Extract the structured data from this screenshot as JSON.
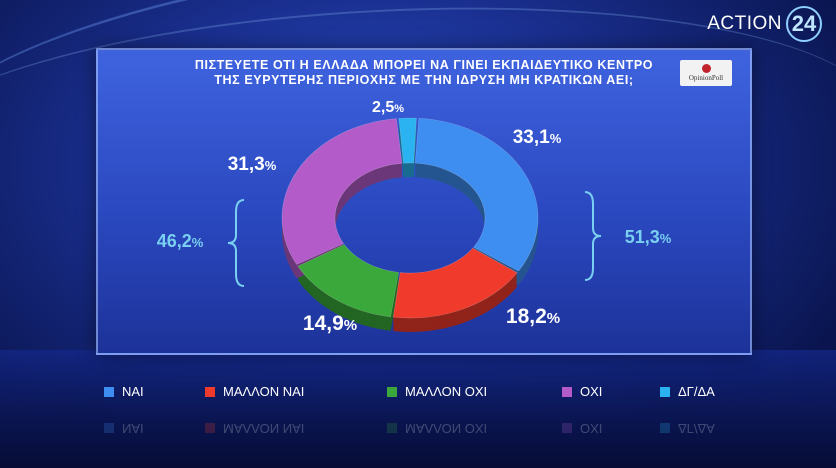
{
  "brand": {
    "name": "ACTION",
    "number": "24"
  },
  "poll_badge": {
    "name": "OpinionPoll"
  },
  "chart_data": {
    "type": "pie",
    "donut": true,
    "title": "ΠΙΣΤΕΥΕΤΕ ΟΤΙ Η ΕΛΛΑΔΑ ΜΠΟΡΕΙ ΝΑ ΓΙΝΕΙ ΕΚΠΑΙΔΕΥΤΙΚΟ ΚΕΝΤΡΟ",
    "title_line2": "ΤΗΣ ΕΥΡΥΤΕΡΗΣ ΠΕΡΙΟΧΗΣ ΜΕ ΤΗΝ ΙΔΡΥΣΗ ΜΗ ΚΡΑΤΙΚΩΝ ΑΕΙ;",
    "categories": [
      "ΝΑΙ",
      "ΜΑΛΛΟΝ ΝΑΙ",
      "ΜΑΛΛΟΝ ΟΧΙ",
      "ΟΧΙ",
      "ΔΓ/ΔΑ"
    ],
    "values": [
      33.1,
      18.2,
      14.9,
      31.3,
      2.5
    ],
    "value_labels": [
      "33,1",
      "18,2",
      "14,9",
      "31,3",
      "2,5"
    ],
    "unit": "%",
    "colors": [
      "#3d8ef0",
      "#f03a2c",
      "#3aa83a",
      "#b35cc9",
      "#2ab3f0"
    ],
    "groups": [
      {
        "label": "51,3",
        "members": [
          "ΝΑΙ",
          "ΜΑΛΛΟΝ ΝΑΙ"
        ],
        "position": "right"
      },
      {
        "label": "46,2",
        "members": [
          "ΜΑΛΛΟΝ ΟΧΙ",
          "ΟΧΙ"
        ],
        "position": "left"
      }
    ],
    "legend_position": "bottom"
  }
}
